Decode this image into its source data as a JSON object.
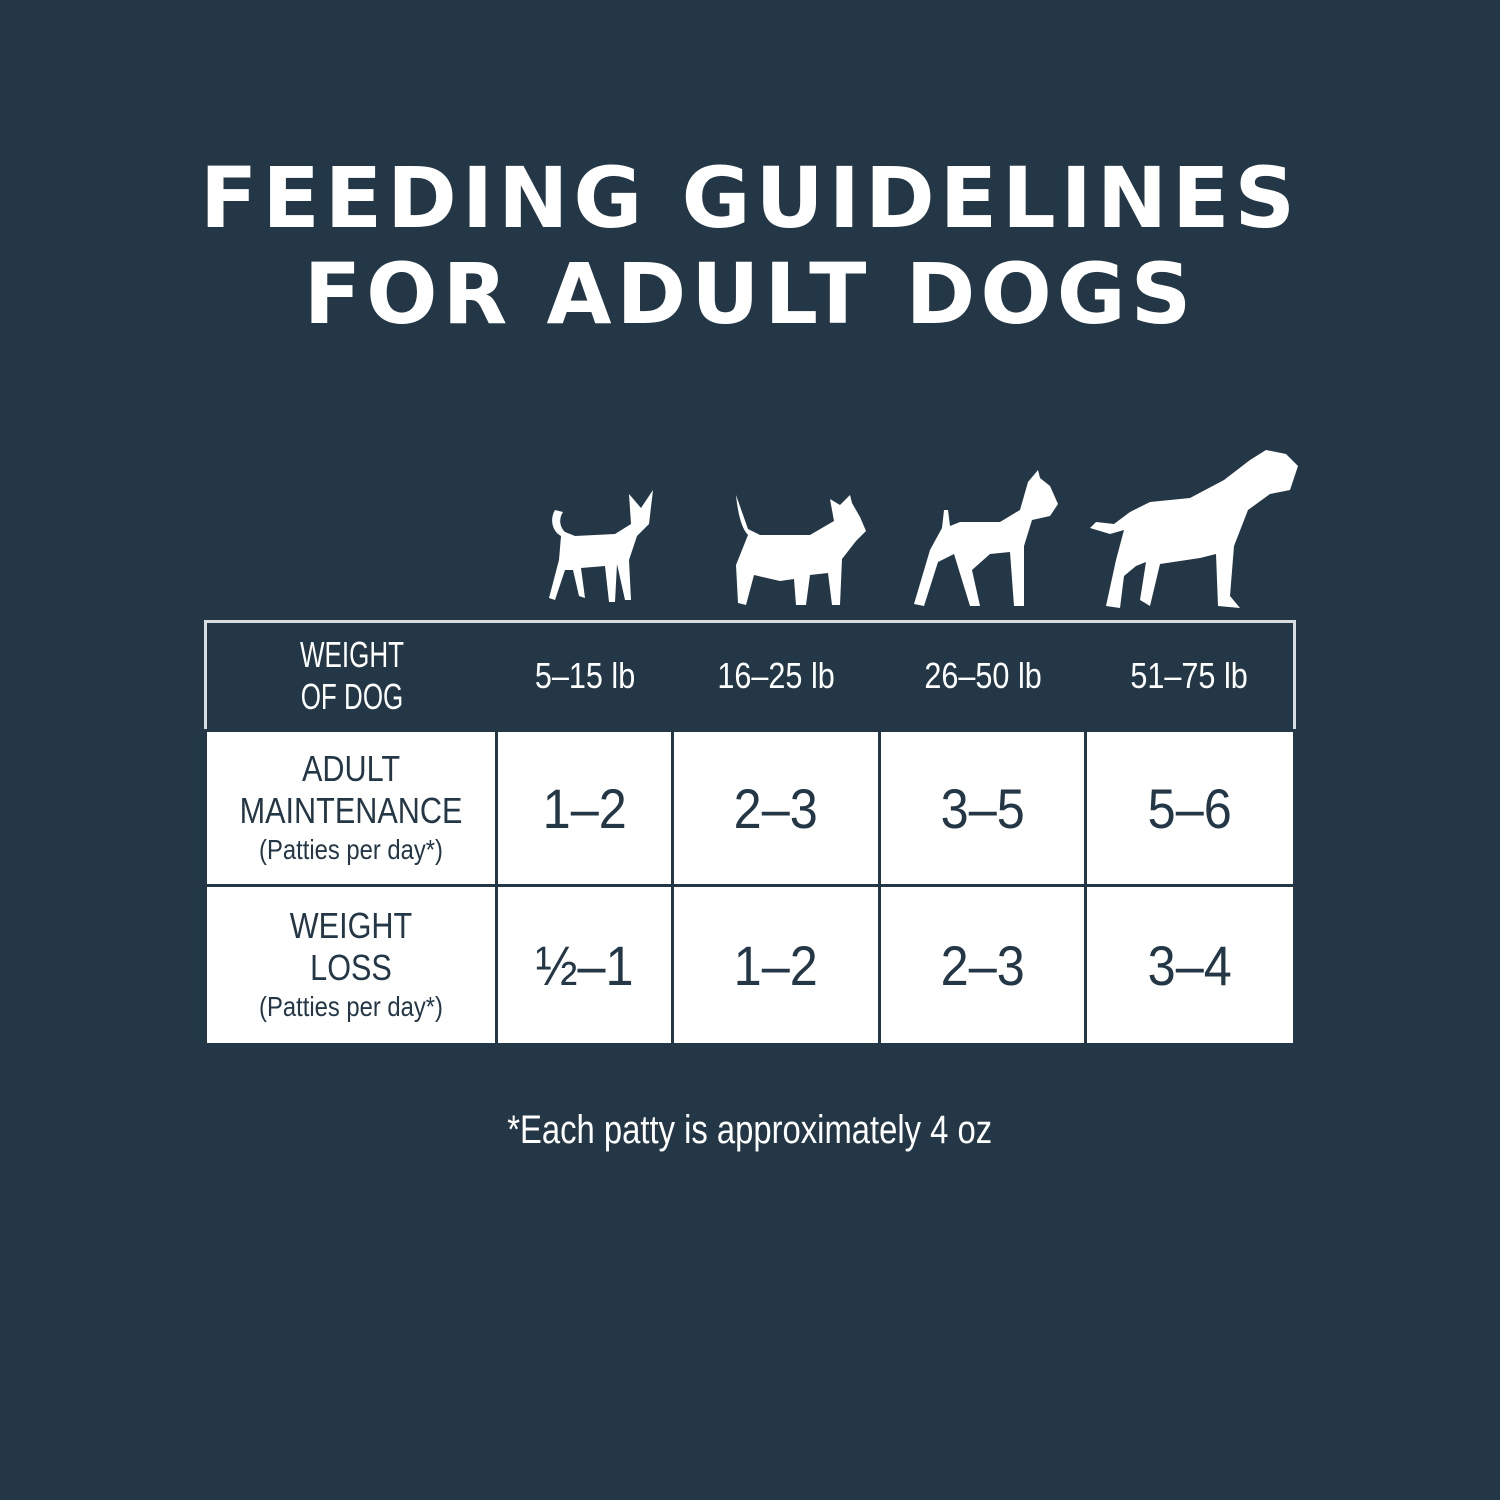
{
  "title_line1": "FEEDING GUIDELINES",
  "title_line2": "FOR ADULT DOGS",
  "colors": {
    "background": "#243746",
    "cell": "#ffffff",
    "text_dark": "#243746"
  },
  "icons": [
    "chihuahua-silhouette-icon",
    "terrier-silhouette-icon",
    "boxer-silhouette-icon",
    "large-dog-silhouette-icon"
  ],
  "table": {
    "header_label_line1": "WEIGHT",
    "header_label_line2": "OF DOG",
    "weights": [
      "5–15 lb",
      "16–25 lb",
      "26–50 lb",
      "51–75 lb"
    ],
    "rows": [
      {
        "label_line1": "ADULT",
        "label_line2": "MAINTENANCE",
        "unit": "(Patties per day*)",
        "values": [
          "1–2",
          "2–3",
          "3–5",
          "5–6"
        ]
      },
      {
        "label_line1": "WEIGHT",
        "label_line2": "LOSS",
        "unit": "(Patties per day*)",
        "values": [
          "½–1",
          "1–2",
          "2–3",
          "3–4"
        ]
      }
    ]
  },
  "footnote": "*Each patty is approximately 4 oz"
}
